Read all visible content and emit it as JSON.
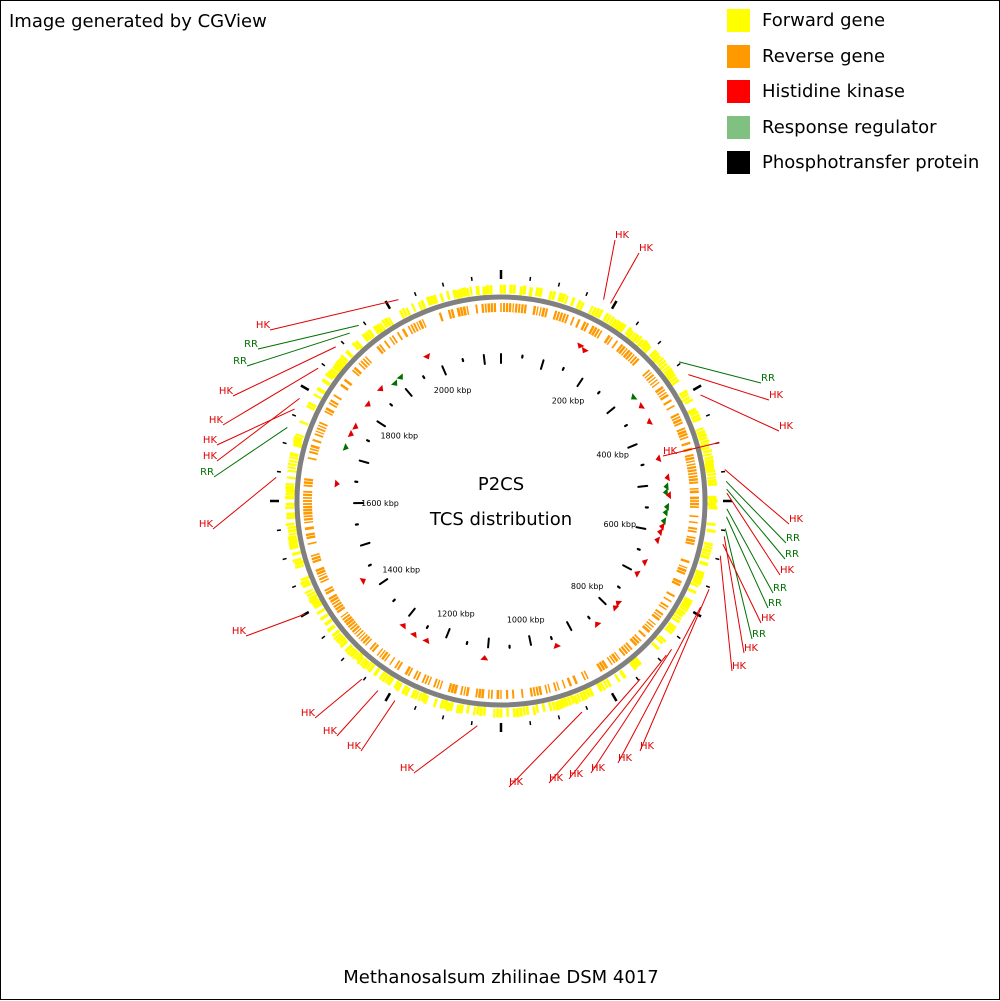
{
  "credit": "Image generated by CGView",
  "legend": [
    {
      "label": "Forward gene",
      "color": "#ffff00"
    },
    {
      "label": "Reverse gene",
      "color": "#ff9900"
    },
    {
      "label": "Histidine kinase",
      "color": "#ff0000"
    },
    {
      "label": "Response regulator",
      "color": "#80c080"
    },
    {
      "label": "Phosphotransfer protein",
      "color": "#000000"
    }
  ],
  "center": {
    "title": "P2CS",
    "subtitle": "TCS distribution"
  },
  "organism": "Methanosalsum zhilinae DSM 4017",
  "colors": {
    "forward": "#ffff00",
    "reverse": "#ff9900",
    "backbone": "#808080",
    "hk": "#e00000",
    "rr": "#007000"
  },
  "ticks": {
    "unit": "kbp",
    "labels": [
      {
        "kbp": 200,
        "text": "200 kbp"
      },
      {
        "kbp": 400,
        "text": "400 kbp"
      },
      {
        "kbp": 600,
        "text": "600 kbp"
      },
      {
        "kbp": 800,
        "text": "800 kbp"
      },
      {
        "kbp": 1000,
        "text": "1000 kbp"
      },
      {
        "kbp": 1200,
        "text": "1200 kbp"
      },
      {
        "kbp": 1400,
        "text": "1400 kbp"
      },
      {
        "kbp": 1600,
        "text": "1600 kbp"
      },
      {
        "kbp": 1800,
        "text": "1800 kbp"
      },
      {
        "kbp": 2000,
        "text": "2000 kbp"
      }
    ]
  },
  "features": [
    {
      "type": "HK",
      "label": "HK"
    },
    {
      "type": "HK",
      "label": "HK"
    },
    {
      "type": "RR",
      "label": "RR"
    },
    {
      "type": "HK",
      "label": "HK"
    },
    {
      "type": "HK",
      "label": "HK"
    },
    {
      "type": "HK",
      "label": "HK"
    },
    {
      "type": "RR",
      "label": "RR"
    },
    {
      "type": "RR",
      "label": "RR"
    },
    {
      "type": "HK",
      "label": "HK"
    },
    {
      "type": "RR",
      "label": "RR"
    },
    {
      "type": "RR",
      "label": "RR"
    },
    {
      "type": "HK",
      "label": "HK"
    },
    {
      "type": "RR",
      "label": "RR"
    },
    {
      "type": "HK",
      "label": "HK"
    },
    {
      "type": "HK",
      "label": "HK"
    },
    {
      "type": "HK",
      "label": "HK"
    },
    {
      "type": "HK",
      "label": "HK"
    },
    {
      "type": "HK",
      "label": "HK"
    },
    {
      "type": "HK",
      "label": "HK"
    },
    {
      "type": "HK",
      "label": "HK"
    },
    {
      "type": "HK",
      "label": "HK"
    },
    {
      "type": "HK",
      "label": "HK"
    },
    {
      "type": "HK",
      "label": "HK"
    },
    {
      "type": "HK",
      "label": "HK"
    },
    {
      "type": "HK",
      "label": "HK"
    },
    {
      "type": "HK",
      "label": "HK"
    },
    {
      "type": "HK",
      "label": "HK"
    },
    {
      "type": "HK",
      "label": "HK"
    },
    {
      "type": "RR",
      "label": "RR"
    },
    {
      "type": "HK",
      "label": "HK"
    },
    {
      "type": "HK",
      "label": "HK"
    },
    {
      "type": "HK",
      "label": "HK"
    },
    {
      "type": "HK",
      "label": "HK"
    },
    {
      "type": "RR",
      "label": "RR"
    },
    {
      "type": "RR",
      "label": "RR"
    },
    {
      "type": "HK",
      "label": "HK"
    }
  ]
}
